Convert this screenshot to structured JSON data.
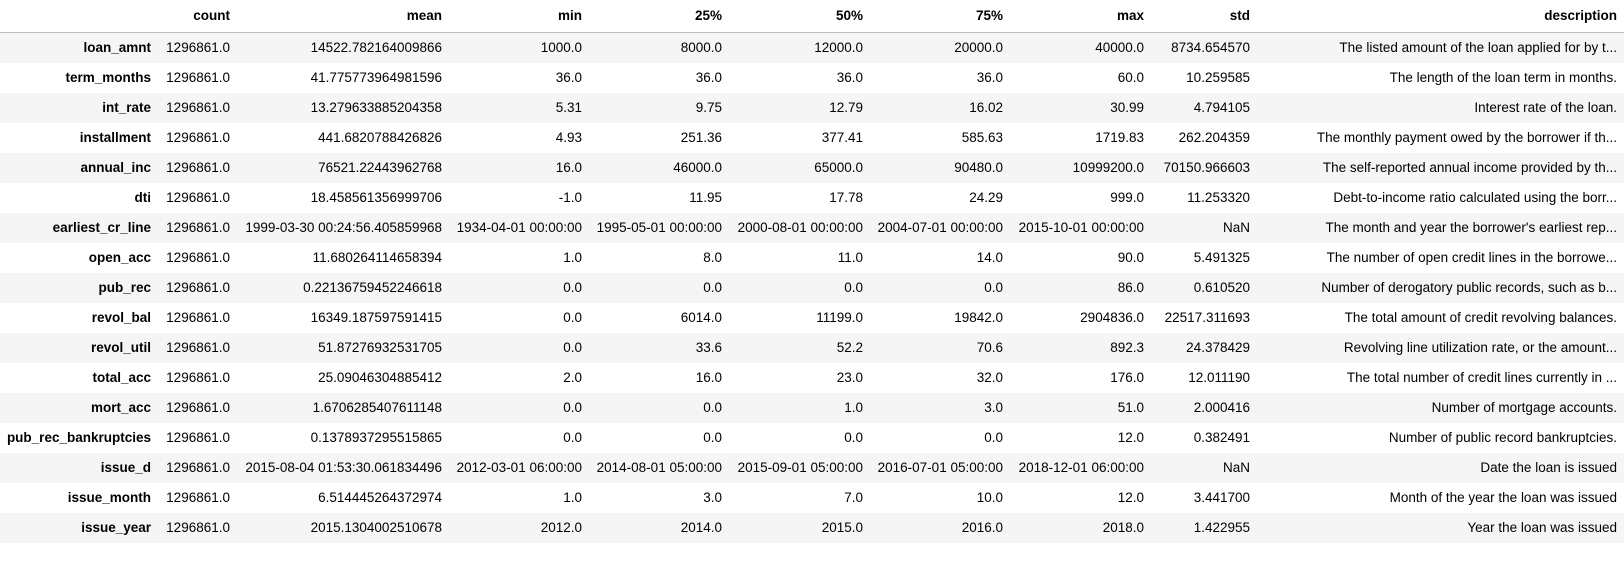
{
  "columns": [
    "",
    "count",
    "mean",
    "min",
    "25%",
    "50%",
    "75%",
    "max",
    "std",
    "description"
  ],
  "rows": [
    {
      "index": "loan_amnt",
      "count": "1296861.0",
      "mean": "14522.782164009866",
      "min": "1000.0",
      "q25": "8000.0",
      "q50": "12000.0",
      "q75": "20000.0",
      "max": "40000.0",
      "std": "8734.654570",
      "description": "The listed amount of the loan applied for by t..."
    },
    {
      "index": "term_months",
      "count": "1296861.0",
      "mean": "41.775773964981596",
      "min": "36.0",
      "q25": "36.0",
      "q50": "36.0",
      "q75": "36.0",
      "max": "60.0",
      "std": "10.259585",
      "description": "The length of the loan term in months."
    },
    {
      "index": "int_rate",
      "count": "1296861.0",
      "mean": "13.279633885204358",
      "min": "5.31",
      "q25": "9.75",
      "q50": "12.79",
      "q75": "16.02",
      "max": "30.99",
      "std": "4.794105",
      "description": "Interest rate of the loan."
    },
    {
      "index": "installment",
      "count": "1296861.0",
      "mean": "441.6820788426826",
      "min": "4.93",
      "q25": "251.36",
      "q50": "377.41",
      "q75": "585.63",
      "max": "1719.83",
      "std": "262.204359",
      "description": "The monthly payment owed by the borrower if th..."
    },
    {
      "index": "annual_inc",
      "count": "1296861.0",
      "mean": "76521.22443962768",
      "min": "16.0",
      "q25": "46000.0",
      "q50": "65000.0",
      "q75": "90480.0",
      "max": "10999200.0",
      "std": "70150.966603",
      "description": "The self-reported annual income provided by th..."
    },
    {
      "index": "dti",
      "count": "1296861.0",
      "mean": "18.458561356999706",
      "min": "-1.0",
      "q25": "11.95",
      "q50": "17.78",
      "q75": "24.29",
      "max": "999.0",
      "std": "11.253320",
      "description": "Debt-to-income ratio calculated using the borr..."
    },
    {
      "index": "earliest_cr_line",
      "count": "1296861.0",
      "mean": "1999-03-30 00:24:56.405859968",
      "min": "1934-04-01 00:00:00",
      "q25": "1995-05-01 00:00:00",
      "q50": "2000-08-01 00:00:00",
      "q75": "2004-07-01 00:00:00",
      "max": "2015-10-01 00:00:00",
      "std": "NaN",
      "description": "The month and year the borrower's earliest rep..."
    },
    {
      "index": "open_acc",
      "count": "1296861.0",
      "mean": "11.680264114658394",
      "min": "1.0",
      "q25": "8.0",
      "q50": "11.0",
      "q75": "14.0",
      "max": "90.0",
      "std": "5.491325",
      "description": "The number of open credit lines in the borrowe..."
    },
    {
      "index": "pub_rec",
      "count": "1296861.0",
      "mean": "0.22136759452246618",
      "min": "0.0",
      "q25": "0.0",
      "q50": "0.0",
      "q75": "0.0",
      "max": "86.0",
      "std": "0.610520",
      "description": "Number of derogatory public records, such as b..."
    },
    {
      "index": "revol_bal",
      "count": "1296861.0",
      "mean": "16349.187597591415",
      "min": "0.0",
      "q25": "6014.0",
      "q50": "11199.0",
      "q75": "19842.0",
      "max": "2904836.0",
      "std": "22517.311693",
      "description": "The total amount of credit revolving balances."
    },
    {
      "index": "revol_util",
      "count": "1296861.0",
      "mean": "51.87276932531705",
      "min": "0.0",
      "q25": "33.6",
      "q50": "52.2",
      "q75": "70.6",
      "max": "892.3",
      "std": "24.378429",
      "description": "Revolving line utilization rate, or the amount..."
    },
    {
      "index": "total_acc",
      "count": "1296861.0",
      "mean": "25.09046304885412",
      "min": "2.0",
      "q25": "16.0",
      "q50": "23.0",
      "q75": "32.0",
      "max": "176.0",
      "std": "12.011190",
      "description": "The total number of credit lines currently in ..."
    },
    {
      "index": "mort_acc",
      "count": "1296861.0",
      "mean": "1.6706285407611148",
      "min": "0.0",
      "q25": "0.0",
      "q50": "1.0",
      "q75": "3.0",
      "max": "51.0",
      "std": "2.000416",
      "description": "Number of mortgage accounts."
    },
    {
      "index": "pub_rec_bankruptcies",
      "count": "1296861.0",
      "mean": "0.1378937295515865",
      "min": "0.0",
      "q25": "0.0",
      "q50": "0.0",
      "q75": "0.0",
      "max": "12.0",
      "std": "0.382491",
      "description": "Number of public record bankruptcies."
    },
    {
      "index": "issue_d",
      "count": "1296861.0",
      "mean": "2015-08-04 01:53:30.061834496",
      "min": "2012-03-01 06:00:00",
      "q25": "2014-08-01 05:00:00",
      "q50": "2015-09-01 05:00:00",
      "q75": "2016-07-01 05:00:00",
      "max": "2018-12-01 06:00:00",
      "std": "NaN",
      "description": "Date the loan is issued"
    },
    {
      "index": "issue_month",
      "count": "1296861.0",
      "mean": "6.514445264372974",
      "min": "1.0",
      "q25": "3.0",
      "q50": "7.0",
      "q75": "10.0",
      "max": "12.0",
      "std": "3.441700",
      "description": "Month of the year the loan was issued"
    },
    {
      "index": "issue_year",
      "count": "1296861.0",
      "mean": "2015.1304002510678",
      "min": "2012.0",
      "q25": "2014.0",
      "q50": "2015.0",
      "q75": "2016.0",
      "max": "2018.0",
      "std": "1.422955",
      "description": "Year the loan was issued"
    }
  ]
}
